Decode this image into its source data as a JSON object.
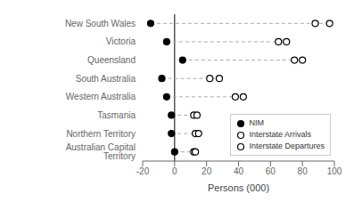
{
  "chart_data": {
    "type": "scatter",
    "orientation": "horizontal",
    "xlabel": "Persons (000)",
    "categories": [
      "New South Wales",
      "Victoria",
      "Queensland",
      "South Australia",
      "Western Australia",
      "Tasmania",
      "Northern Territory",
      "Australian Capital Territory"
    ],
    "series": [
      {
        "name": "NIM",
        "color": "#000000",
        "marker": "filled",
        "values": [
          -15,
          -5,
          5,
          -8,
          -5,
          -2,
          -2,
          0
        ]
      },
      {
        "name": "Interstate Arrivals",
        "color": "#000000",
        "marker": "open",
        "values": [
          88,
          65,
          80,
          22,
          38,
          12,
          13,
          12
        ]
      },
      {
        "name": "Interstate Departures",
        "color": "#000000",
        "marker": "open",
        "values": [
          97,
          70,
          75,
          28,
          43,
          14,
          15,
          13
        ]
      }
    ],
    "xlim": [
      -20,
      100
    ],
    "xticks": [
      -20,
      0,
      20,
      40,
      60,
      80,
      100
    ],
    "grid": false,
    "legend": "lower right"
  }
}
